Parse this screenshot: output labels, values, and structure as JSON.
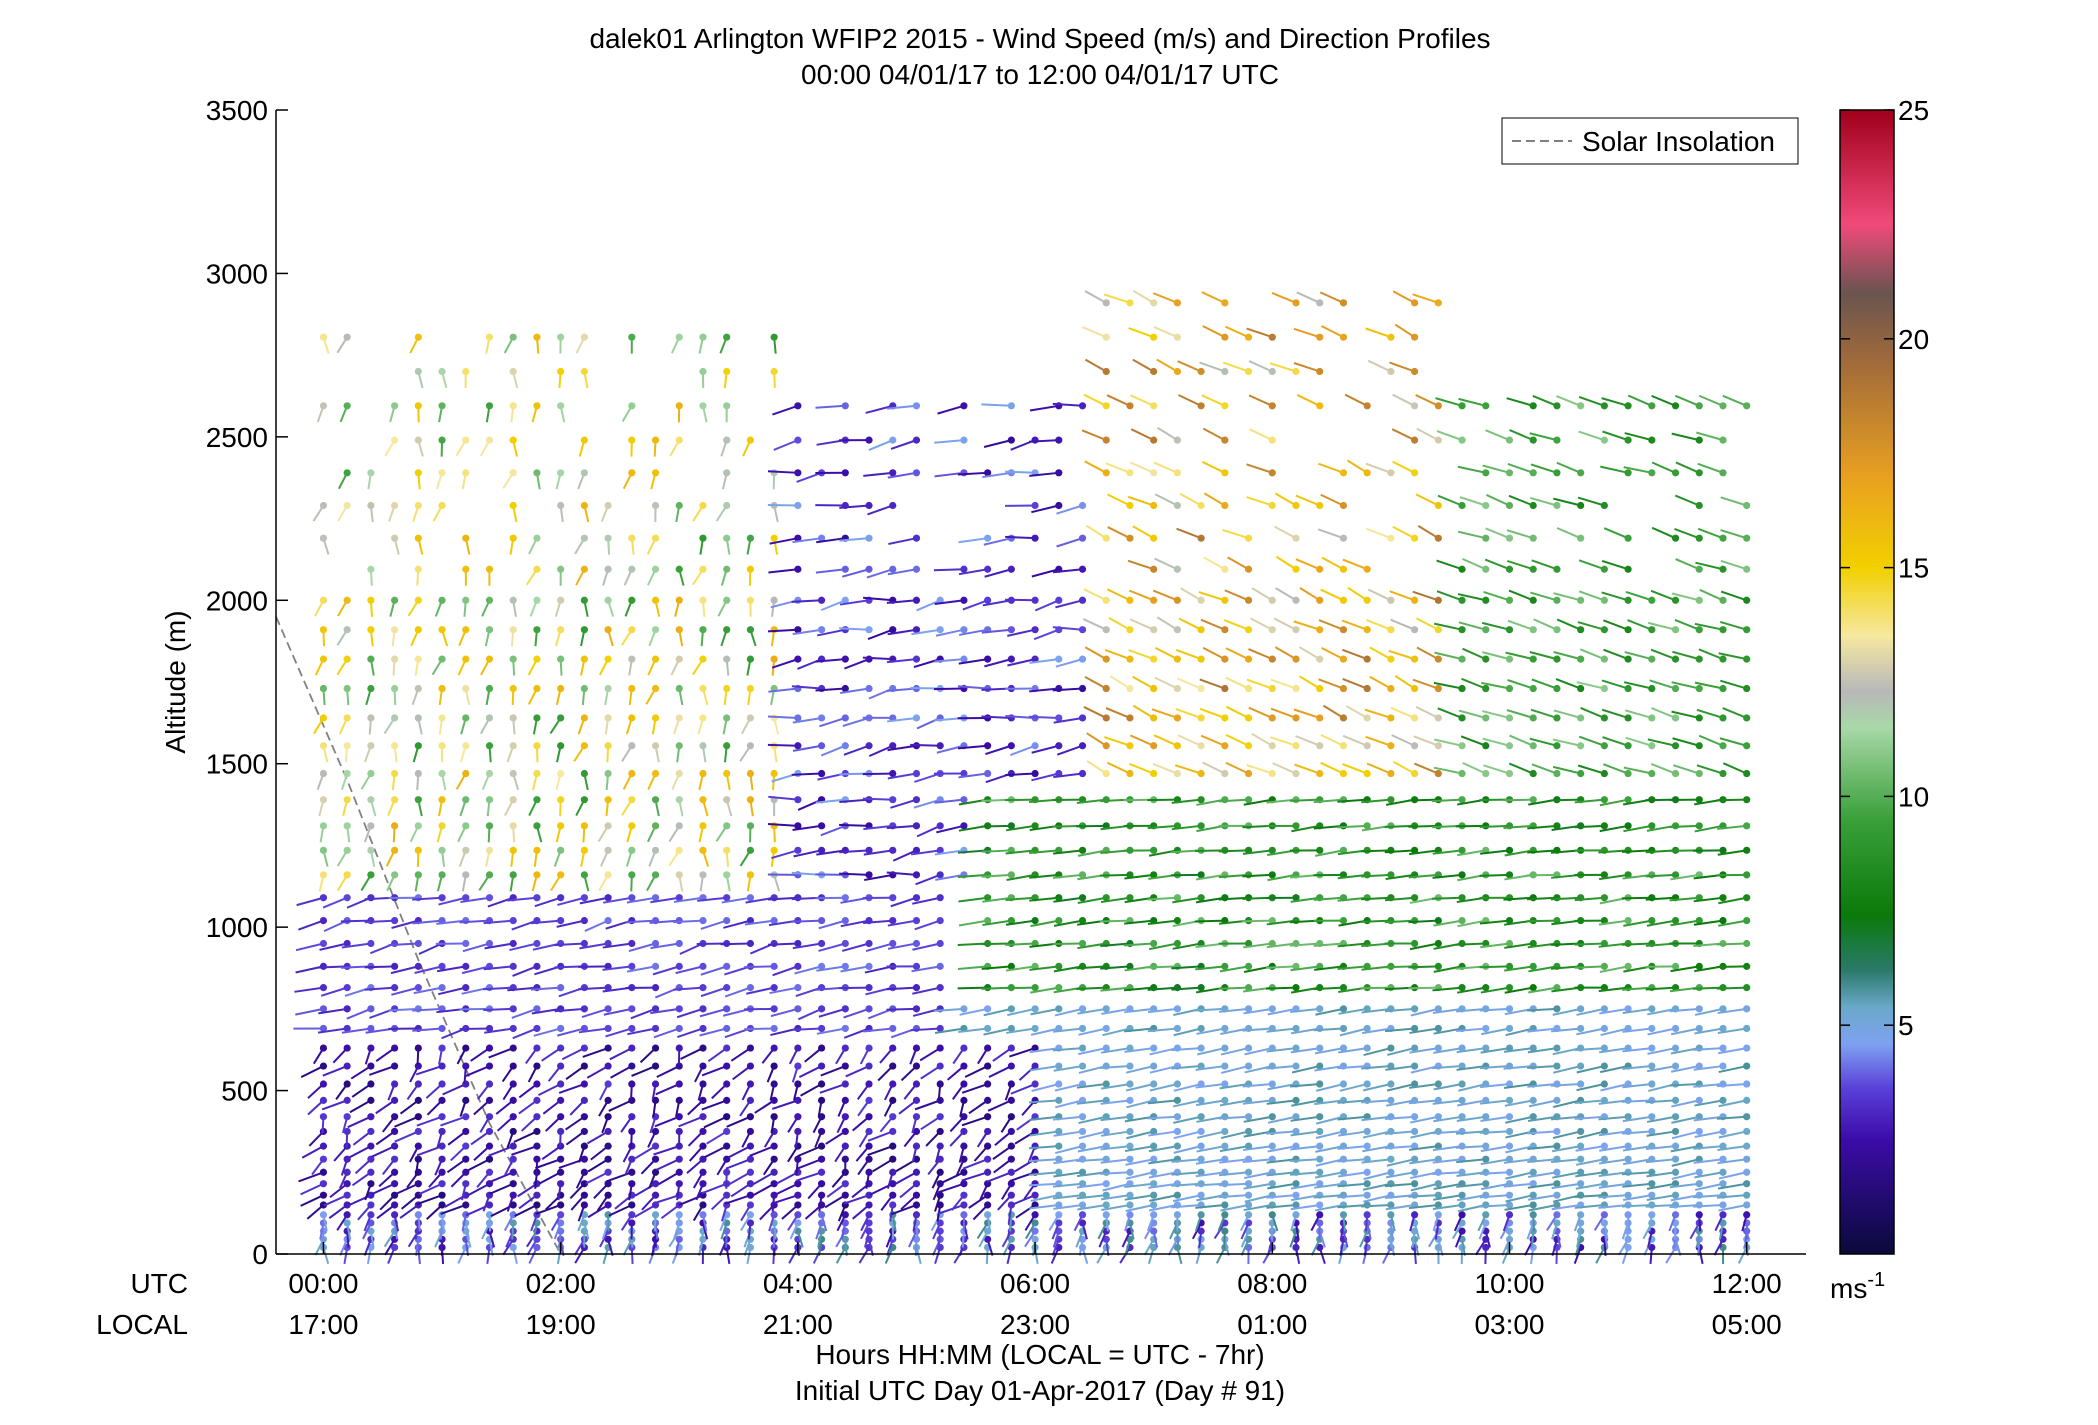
{
  "chart_data": {
    "type": "wind-barb-profile",
    "title": "dalek01 Arlington WFIP2 2015 - Wind Speed (m/s) and Direction Profiles",
    "subtitle": "00:00 04/01/17 to 12:00 04/01/17  UTC",
    "ylabel": "Altitude (m)",
    "xlabel": "Hours HH:MM  (LOCAL = UTC - 7hr)",
    "xlabel2": "Initial UTC Day 01-Apr-2017 (Day # 91)",
    "ylim": [
      0,
      3500
    ],
    "xlim_hours": [
      -0.4,
      12.5
    ],
    "y_ticks": [
      "0",
      "500",
      "1000",
      "1500",
      "2000",
      "2500",
      "3000",
      "3500"
    ],
    "y_tick_values": [
      0,
      500,
      1000,
      1500,
      2000,
      2500,
      3000,
      3500
    ],
    "x_row_labels": {
      "utc": "UTC",
      "local": "LOCAL"
    },
    "x_tick_hours": [
      0,
      2,
      4,
      6,
      8,
      10,
      12
    ],
    "x_ticks_utc": [
      "00:00",
      "02:00",
      "04:00",
      "06:00",
      "08:00",
      "10:00",
      "12:00"
    ],
    "x_ticks_local": [
      "17:00",
      "19:00",
      "21:00",
      "23:00",
      "01:00",
      "03:00",
      "05:00"
    ],
    "legend": {
      "entries": [
        "Solar Insolation"
      ],
      "placement": "top-right"
    },
    "colorbar": {
      "range": [
        0,
        25
      ],
      "ticks": [
        "5",
        "10",
        "15",
        "20",
        "25"
      ],
      "tick_values": [
        5,
        10,
        15,
        20,
        25
      ],
      "unit_base": "ms",
      "unit_exp": "-1",
      "colors": [
        {
          "v": 0,
          "c": "#0a0a3a"
        },
        {
          "v": 2.5,
          "c": "#3b0ca8"
        },
        {
          "v": 3.6,
          "c": "#5a3ed8"
        },
        {
          "v": 4.6,
          "c": "#7ea2f2"
        },
        {
          "v": 5.4,
          "c": "#6aa8c8"
        },
        {
          "v": 6.2,
          "c": "#2a7a6a"
        },
        {
          "v": 7.4,
          "c": "#0a7a0a"
        },
        {
          "v": 9.5,
          "c": "#3aa03a"
        },
        {
          "v": 11.5,
          "c": "#a8d8a8"
        },
        {
          "v": 12.3,
          "c": "#b8b8b8"
        },
        {
          "v": 13.5,
          "c": "#f6e8a0"
        },
        {
          "v": 15,
          "c": "#f2d000"
        },
        {
          "v": 17,
          "c": "#e8a020"
        },
        {
          "v": 19.5,
          "c": "#a06a3a"
        },
        {
          "v": 21,
          "c": "#6a5450"
        },
        {
          "v": 22.5,
          "c": "#f04a7a"
        },
        {
          "v": 25,
          "c": "#a0001a"
        }
      ]
    },
    "insolation_curve": {
      "hours": [
        -0.4,
        0.2,
        0.8,
        1.4,
        2.0
      ],
      "altitude_m": [
        1950,
        1450,
        900,
        400,
        0
      ],
      "color": "#808080"
    },
    "profile_hours_start": 0,
    "profile_hours_end": 12,
    "profile_count": 61,
    "profile_altitudes_m": [
      20,
      45,
      70,
      95,
      120,
      150,
      180,
      215,
      250,
      290,
      330,
      375,
      420,
      470,
      520,
      575,
      630,
      690,
      750,
      815,
      880,
      950,
      1020,
      1090,
      1160,
      1235,
      1310,
      1390,
      1470,
      1555,
      1640,
      1730,
      1820,
      1910,
      2000,
      2095,
      2190,
      2290,
      2390,
      2490,
      2595,
      2700,
      2805,
      2910,
      3020
    ],
    "wind_regimes": [
      {
        "t0": 0,
        "t1": 12,
        "z0": 0,
        "z1": 150,
        "speed": [
          2.5,
          6.0
        ],
        "dir": [
          170,
          200
        ]
      },
      {
        "t0": 0,
        "t1": 6,
        "z0": 150,
        "z1": 650,
        "speed": [
          1.5,
          3.5
        ],
        "dir": [
          180,
          240
        ]
      },
      {
        "t0": 0,
        "t1": 5.2,
        "z0": 650,
        "z1": 1150,
        "speed": [
          3.0,
          4.2
        ],
        "dir": [
          230,
          270
        ]
      },
      {
        "t0": 5.2,
        "t1": 12,
        "z0": 150,
        "z1": 800,
        "speed": [
          4.6,
          5.8
        ],
        "dir": [
          245,
          265
        ]
      },
      {
        "t0": 5.5,
        "t1": 12,
        "z0": 800,
        "z1": 1420,
        "speed": [
          7.0,
          10.5
        ],
        "dir": [
          250,
          270
        ]
      },
      {
        "t0": 0,
        "t1": 3.8,
        "z0": 1150,
        "z1": 2850,
        "speed": [
          9.0,
          16.5
        ],
        "dir": [
          170,
          200
        ]
      },
      {
        "t0": 3.8,
        "t1": 6.5,
        "z0": 1150,
        "z1": 2600,
        "speed": [
          2.2,
          4.8
        ],
        "dir": [
          230,
          280
        ]
      },
      {
        "t0": 6.5,
        "t1": 9.5,
        "z0": 1420,
        "z1": 3000,
        "speed": [
          12.0,
          19.0
        ],
        "dir": [
          300,
          320
        ]
      },
      {
        "t0": 9.5,
        "t1": 12,
        "z0": 1420,
        "z1": 2700,
        "speed": [
          8.0,
          11.0
        ],
        "dir": [
          290,
          310
        ]
      }
    ]
  }
}
